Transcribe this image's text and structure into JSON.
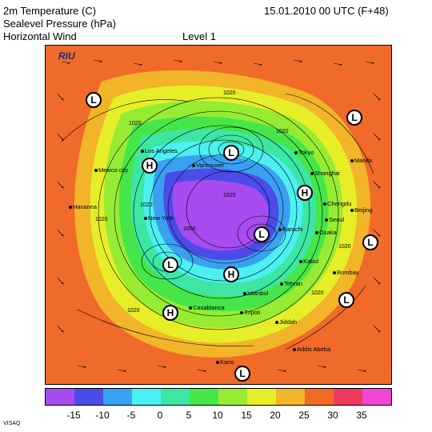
{
  "header": {
    "line1": "2m Temperature (C)",
    "line2": "Sealevel Pressure (hPa)",
    "line3": "Horizontal Wind",
    "level": "Level  1",
    "datetime": "15.01.2010 00 UTC (F+48)"
  },
  "logo": "RIU",
  "footer": "VISAQ",
  "colorbar": {
    "colors": [
      "#a64cf0",
      "#4b4be8",
      "#3aa0f2",
      "#4cf0f0",
      "#3ee6a4",
      "#46e64a",
      "#96ec32",
      "#e6ee28",
      "#f2b428",
      "#f06a2a",
      "#ef3a60",
      "#f046d2"
    ],
    "ticks": [
      "-15",
      "-10",
      "-5",
      "0",
      "5",
      "10",
      "15",
      "20",
      "25",
      "30",
      "35"
    ]
  },
  "cities": [
    "Los Angeles",
    "Vancouver",
    "Mexico city",
    "Havanna",
    "New York",
    "Tokyo",
    "Shanghai",
    "Manila",
    "Chengdu",
    "Beijing",
    "Seoul",
    "Osaka",
    "Kabul",
    "Bombay",
    "Tehran",
    "Karachi",
    "Istanbul",
    "Casablanca",
    "Tripoli",
    "Jiddah",
    "Addis Abeba",
    "Kano"
  ],
  "pressure_centers": [
    "L",
    "L",
    "H",
    "L",
    "H",
    "L",
    "L",
    "H",
    "L",
    "H",
    "L",
    "L"
  ],
  "isobar_labels": [
    "1020",
    "1020",
    "1020",
    "1020",
    "1020",
    "1020",
    "1000",
    "1020",
    "1020",
    "1020"
  ]
}
